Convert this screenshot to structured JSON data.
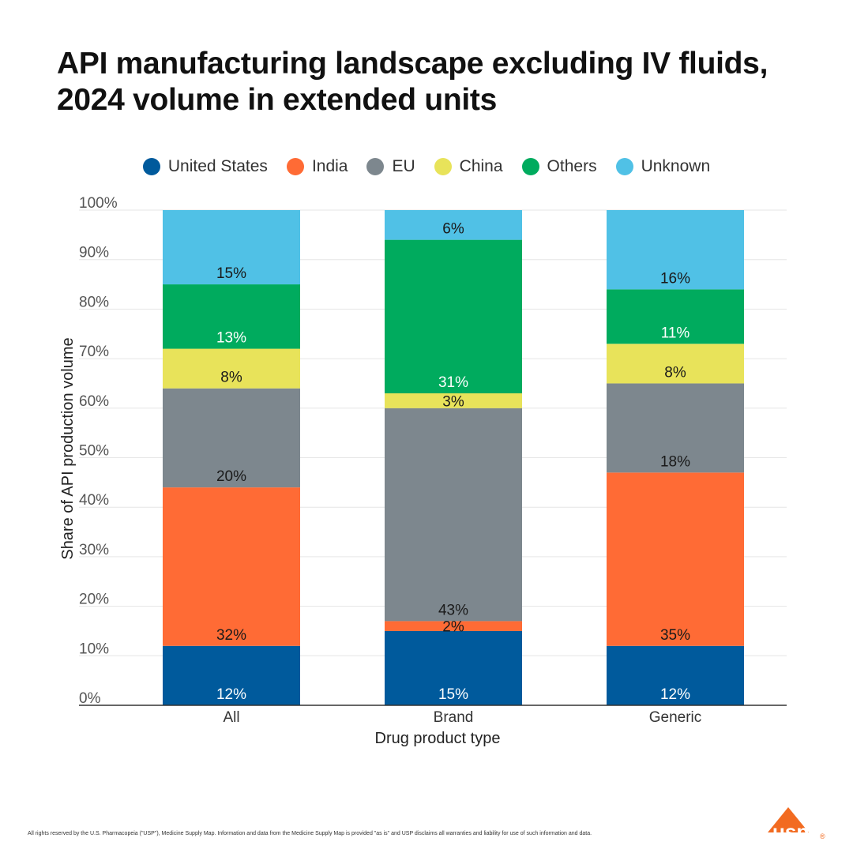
{
  "title_lines": [
    "API manufacturing landscape excluding IV fluids,",
    "2024 volume in extended units"
  ],
  "legend": [
    {
      "label": "United States",
      "color": "#005a9c"
    },
    {
      "label": "India",
      "color": "#ff6b35"
    },
    {
      "label": "EU",
      "color": "#7d878e"
    },
    {
      "label": "China",
      "color": "#e8e35a"
    },
    {
      "label": "Others",
      "color": "#00ab5e"
    },
    {
      "label": "Unknown",
      "color": "#50c1e6"
    }
  ],
  "chart_data": {
    "type": "bar",
    "stacked": true,
    "categories": [
      "All",
      "Brand",
      "Generic"
    ],
    "series": [
      {
        "name": "United States",
        "color": "#005a9c",
        "values": [
          12,
          15,
          12
        ]
      },
      {
        "name": "India",
        "color": "#ff6b35",
        "values": [
          32,
          2,
          35
        ]
      },
      {
        "name": "EU",
        "color": "#7d878e",
        "values": [
          20,
          43,
          18
        ]
      },
      {
        "name": "China",
        "color": "#e8e35a",
        "values": [
          8,
          3,
          8
        ]
      },
      {
        "name": "Others",
        "color": "#00ab5e",
        "values": [
          13,
          31,
          11
        ]
      },
      {
        "name": "Unknown",
        "color": "#50c1e6",
        "values": [
          15,
          6,
          16
        ]
      }
    ],
    "xlabel": "Drug product type",
    "ylabel": "Share of API production volume",
    "ylim": [
      0,
      100
    ],
    "yticks": [
      "0%",
      "10%",
      "20%",
      "30%",
      "40%",
      "50%",
      "60%",
      "70%",
      "80%",
      "90%",
      "100%"
    ],
    "grid": true,
    "legend_position": "top"
  },
  "footer": "All rights reserved by the U.S. Pharmacopeia (\"USP\"), Medicine Supply Map. Information and data from the Medicine Supply Map is provided \"as is\" and USP disclaims all warranties and liability for use of such information and data.",
  "logo": {
    "text": "usp",
    "mark": "®",
    "color": "#f26b21"
  }
}
